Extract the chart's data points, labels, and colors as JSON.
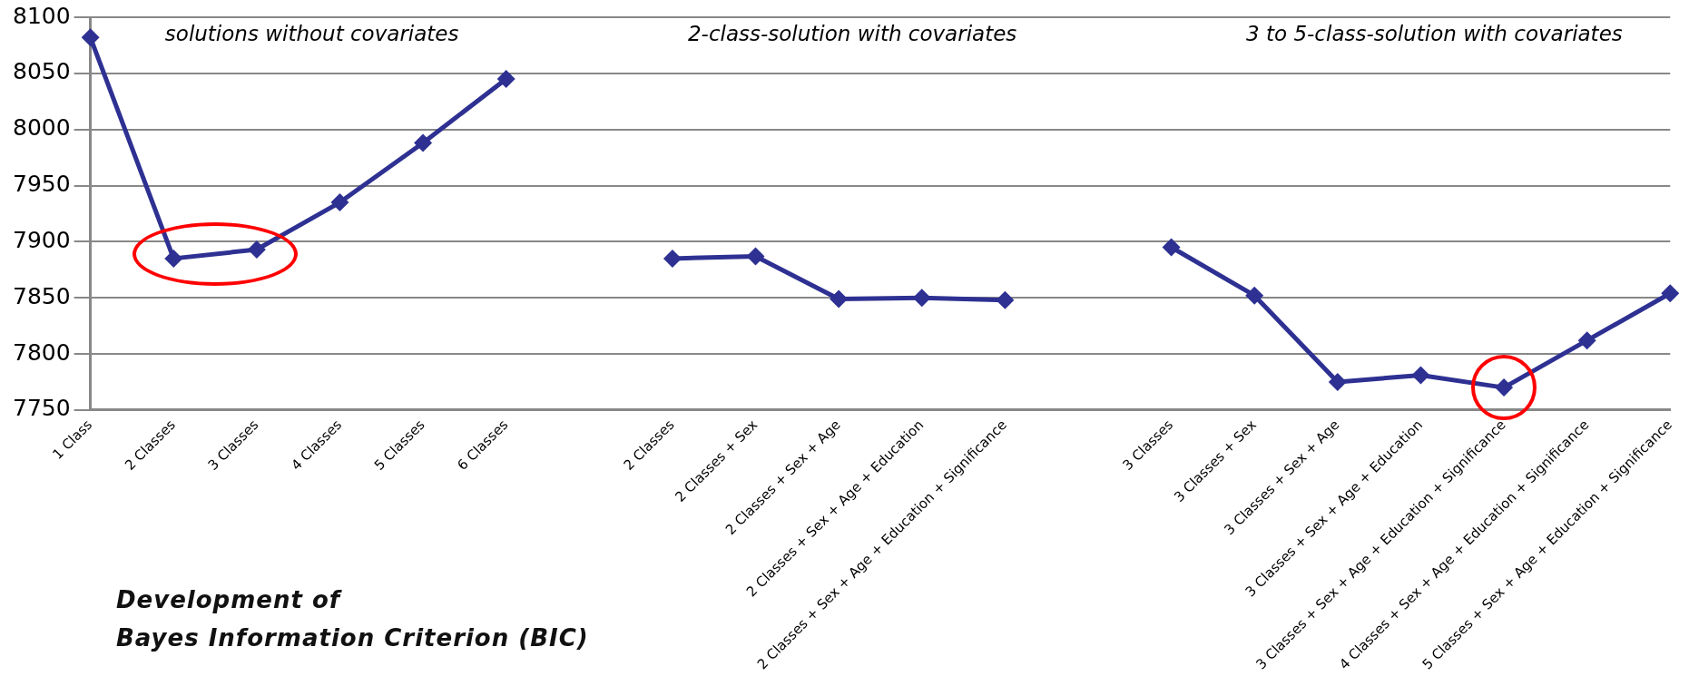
{
  "chart_data": {
    "type": "line",
    "title": "Development of\nBayes Information Criterion (BIC)",
    "categories": [
      "1 Class",
      "2 Classes",
      "3 Classes",
      "4 Classes",
      "5 Classes",
      "6 Classes",
      null,
      "2 Classes",
      "2 Classes + Sex",
      "2 Classes + Sex + Age",
      "2 Classes + Sex + Age + Education",
      "2 Classes + Sex + Age + Education + Significance",
      null,
      "3 Classes",
      "3 Classes + Sex",
      "3 Classes + Sex + Age",
      "3 Classes + Sex + Age + Education",
      "3 Classes + Sex + Age + Education + Significance",
      "4 Classes + Sex + Age + Education + Significance",
      "5 Classes + Sex + Age + Education + Significance"
    ],
    "series": [
      {
        "color": "#2e3192",
        "values": [
          8082,
          7885,
          7893,
          7935,
          7988,
          8045,
          null,
          7885,
          7887,
          7849,
          7850,
          7848,
          null,
          7895,
          7852,
          7775,
          7781,
          7770,
          7812,
          7854
        ]
      }
    ],
    "ylim": [
      7750,
      8100
    ],
    "yticks": [
      7750,
      7800,
      7850,
      7900,
      7950,
      8000,
      8050,
      8100
    ],
    "grid": "y",
    "legend": false,
    "marker": "diamond",
    "line_style": "solid",
    "annotations": [
      "solutions without covariates",
      "2-class-solution with covariates",
      "3 to 5-class-solution with covariates"
    ]
  }
}
